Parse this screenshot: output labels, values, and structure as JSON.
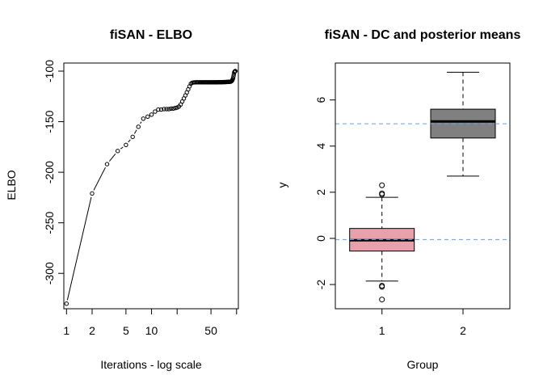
{
  "chart_data": [
    {
      "type": "line",
      "title": "fiSAN - ELBO",
      "xlabel": "Iterations - log scale",
      "ylabel": "ELBO",
      "xscale": "log",
      "xlim": [
        0.93,
        105
      ],
      "ylim": [
        -335,
        -92
      ],
      "xticks": [
        1,
        2,
        5,
        10,
        20,
        50,
        100
      ],
      "xtick_labels": [
        "1",
        "2",
        "5",
        "10",
        "",
        "50",
        ""
      ],
      "yticks": [
        -300,
        -250,
        -200,
        -150,
        -100
      ],
      "ytick_labels": [
        "-300",
        "-250",
        "-200",
        "-150",
        "-100"
      ],
      "style": "points-and-lines",
      "grid": false,
      "y": [
        -330,
        -221,
        -192,
        -179,
        -173,
        -165,
        -155,
        -147,
        -145,
        -143,
        -140,
        -138,
        -138,
        -137.5,
        -137.5,
        -137.5,
        -137,
        -137,
        -136.5,
        -136,
        -135,
        -133,
        -130,
        -127,
        -124,
        -121,
        -118,
        -115,
        -112.5,
        -111.5,
        -111.2,
        -111.1,
        -111,
        -111,
        -111,
        -111,
        -111,
        -111,
        -111,
        -111,
        -111,
        -111,
        -111,
        -111,
        -111,
        -111,
        -111,
        -111,
        -111,
        -111,
        -111,
        -111,
        -111,
        -111,
        -111,
        -111,
        -111,
        -111,
        -111,
        -111,
        -110.9,
        -110.9,
        -110.9,
        -110.9,
        -110.9,
        -110.9,
        -110.9,
        -110.9,
        -110.8,
        -110.8,
        -110.8,
        -110.8,
        -110.8,
        -110.8,
        -110.7,
        -110.7,
        -110.7,
        -110.7,
        -110.6,
        -110.6,
        -110.6,
        -110.5,
        -110.5,
        -110.4,
        -110.4,
        -110.3,
        -110,
        -109.5,
        -109,
        -108,
        -107,
        -105,
        -103,
        -101,
        -100.5,
        -100,
        -100
      ]
    },
    {
      "type": "boxplot",
      "title": "fiSAN - DC and posterior means",
      "xlabel": "Group",
      "ylabel": "y",
      "ylim": [
        -3.05,
        7.6
      ],
      "yticks": [
        -2,
        0,
        2,
        4,
        6
      ],
      "ytick_labels": [
        "-2",
        "0",
        "2",
        "4",
        "6"
      ],
      "categories": [
        "1",
        "2"
      ],
      "boxes": [
        {
          "group": "1",
          "whisker_low": -1.85,
          "q1": -0.55,
          "median": -0.08,
          "q3": 0.43,
          "whisker_high": 1.78,
          "outliers": [
            2.3,
            1.95,
            1.9,
            -2.05,
            -2.1,
            -2.65
          ],
          "color": "#E8A0AA"
        },
        {
          "group": "2",
          "whisker_low": 2.7,
          "q1": 4.35,
          "median": 5.07,
          "q3": 5.6,
          "whisker_high": 7.2,
          "outliers": [],
          "color": "#808080"
        }
      ],
      "hlines": [
        4.97,
        -0.05
      ],
      "hline_color": "#6A9FD8",
      "grid": false
    }
  ]
}
